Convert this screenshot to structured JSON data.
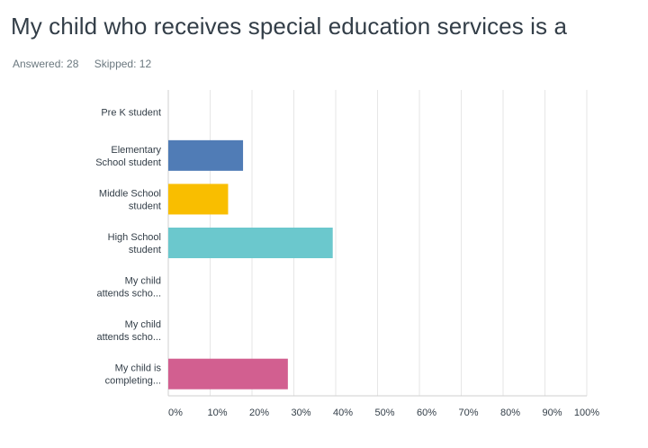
{
  "header": {
    "title": "My child who receives special education services is a",
    "answered": "Answered: 28",
    "skipped": "Skipped: 12"
  },
  "chart_data": {
    "type": "bar",
    "orientation": "horizontal",
    "categories": [
      [
        "Pre K student"
      ],
      [
        "Elementary",
        "School student"
      ],
      [
        "Middle School",
        "student"
      ],
      [
        "High School",
        "student"
      ],
      [
        "My child",
        "attends scho..."
      ],
      [
        "My child",
        "attends scho..."
      ],
      [
        "My child is",
        "completing..."
      ]
    ],
    "values": [
      0,
      17.86,
      14.29,
      39.29,
      0,
      0,
      28.57
    ],
    "colors": [
      "#507cb6",
      "#507cb6",
      "#f9be00",
      "#6bc8cd",
      "#507cb6",
      "#507cb6",
      "#d25f90"
    ],
    "xlim": [
      0,
      100
    ],
    "xticks": [
      "0%",
      "10%",
      "20%",
      "30%",
      "40%",
      "50%",
      "60%",
      "70%",
      "80%",
      "90%",
      "100%"
    ],
    "grid": true,
    "gridColor": "#e6e6e6",
    "axisColor": "#cfcfcf"
  }
}
